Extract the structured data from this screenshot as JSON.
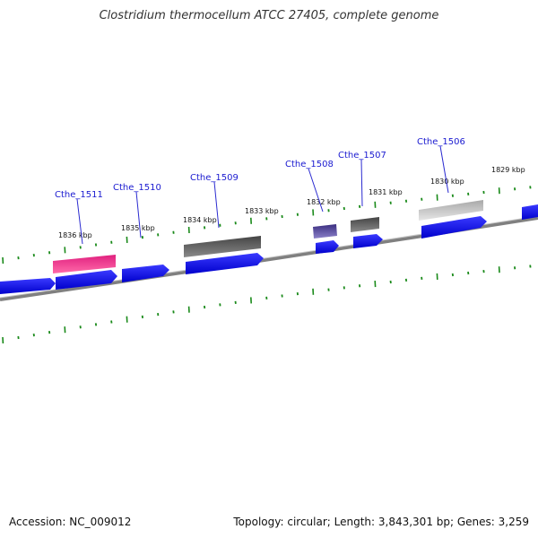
{
  "title": "Clostridium thermocellum ATCC 27405, complete genome",
  "footer": {
    "accession": "Accession: NC_009012",
    "summary": "Topology: circular; Length: 3,843,301 bp; Genes: 3,259"
  },
  "colors": {
    "backbone": "#808080",
    "forward_gene": "#0000ee",
    "tick": "#1a8a1a",
    "label": "#1a1ad0",
    "pink_feature": "#ee2a8c",
    "dark_feature": "#555555",
    "purple_feature": "#4a3d8f",
    "light_feature": "#bbbbbb"
  },
  "kbp_ticks": [
    {
      "label": "1836 kbp"
    },
    {
      "label": "1835 kbp"
    },
    {
      "label": "1834 kbp"
    },
    {
      "label": "1833 kbp"
    },
    {
      "label": "1832 kbp"
    },
    {
      "label": "1831 kbp"
    },
    {
      "label": "1830 kbp"
    },
    {
      "label": "1829 kbp"
    }
  ],
  "gene_labels": [
    {
      "label": "Cthe_1511"
    },
    {
      "label": "Cthe_1510"
    },
    {
      "label": "Cthe_1509"
    },
    {
      "label": "Cthe_1508"
    },
    {
      "label": "Cthe_1507"
    },
    {
      "label": "Cthe_1506"
    }
  ]
}
